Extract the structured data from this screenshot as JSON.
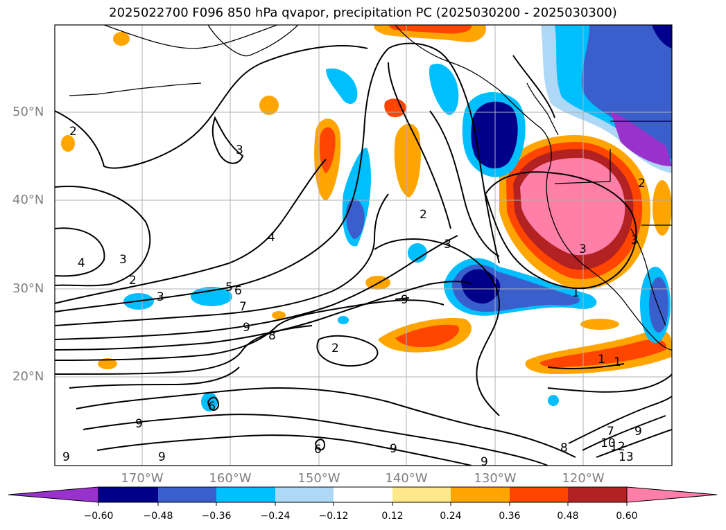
{
  "title": "2025022700 F096 850 hPa qvapor, precipitation PC (2025030200 - 2025030300)",
  "lat_labels": [
    "50°N",
    "40°N",
    "30°N",
    "20°N"
  ],
  "lon_labels": [
    "170°W",
    "160°W",
    "150°W",
    "140°W",
    "130°W",
    "120°W"
  ],
  "colorbar": {
    "ticks": [
      "−0.60",
      "−0.48",
      "−0.36",
      "−0.24",
      "−0.12",
      "0.12",
      "0.24",
      "0.36",
      "0.48",
      "0.60"
    ],
    "colors": [
      "#9932cc",
      "#00008b",
      "#3a5fcd",
      "#00bfff",
      "#add8f6",
      "#ffffff",
      "#ffe88a",
      "#ffa500",
      "#ff4500",
      "#b22222",
      "#ff7fa8"
    ],
    "extend": "both"
  },
  "contour_labels": [
    "2",
    "3",
    "3",
    "4",
    "3",
    "2",
    "4",
    "3",
    "5",
    "6",
    "7",
    "9",
    "8",
    "2",
    "2",
    "3",
    "9",
    "6",
    "9",
    "9",
    "9",
    "9",
    "1",
    "1",
    "7",
    "10",
    "12",
    "13",
    "9",
    "8",
    "3",
    "1",
    "9",
    "6",
    "2"
  ]
}
